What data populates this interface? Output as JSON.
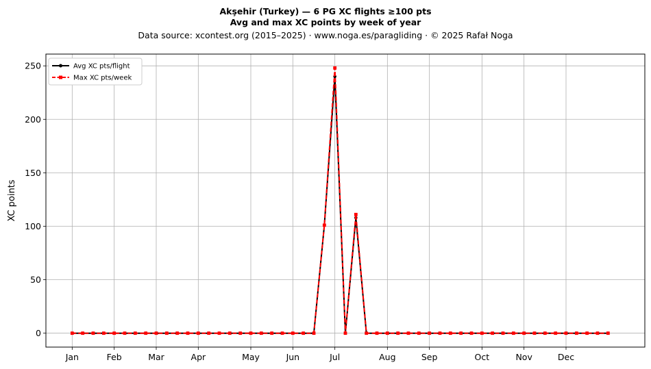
{
  "chart_data": {
    "type": "line",
    "title": "Akşehir (Turkey)  —  6 PG XC flights ≥100 pts",
    "subtitle": "Avg and max XC points by week of year",
    "source": "Data source: xcontest.org (2015–2025)  ·  www.noga.es/paragliding  ·  © 2025 Rafał Noga",
    "xlabel": "",
    "ylabel": "XC points",
    "xlim": [
      -2.5,
      54.5
    ],
    "ylim": [
      -13,
      261
    ],
    "yticks": [
      0,
      50,
      100,
      150,
      200,
      250
    ],
    "x_ticks": [
      {
        "label": "Jan",
        "week": 0
      },
      {
        "label": "Feb",
        "week": 4
      },
      {
        "label": "Mar",
        "week": 8
      },
      {
        "label": "Apr",
        "week": 12
      },
      {
        "label": "May",
        "week": 17
      },
      {
        "label": "Jun",
        "week": 21
      },
      {
        "label": "Jul",
        "week": 25
      },
      {
        "label": "Aug",
        "week": 30
      },
      {
        "label": "Sep",
        "week": 34
      },
      {
        "label": "Oct",
        "week": 39
      },
      {
        "label": "Nov",
        "week": 43
      },
      {
        "label": "Dec",
        "week": 47
      }
    ],
    "grid": true,
    "legend_position": "top-left",
    "x": [
      0,
      1,
      2,
      3,
      4,
      5,
      6,
      7,
      8,
      9,
      10,
      11,
      12,
      13,
      14,
      15,
      16,
      17,
      18,
      19,
      20,
      21,
      22,
      23,
      24,
      25,
      26,
      27,
      28,
      29,
      30,
      31,
      32,
      33,
      34,
      35,
      36,
      37,
      38,
      39,
      40,
      41,
      42,
      43,
      44,
      45,
      46,
      47,
      48,
      49,
      50,
      51
    ],
    "series": [
      {
        "name": "Avg XC pts/flight",
        "color": "#000000",
        "style": "solid",
        "marker": "circle",
        "values": [
          0,
          0,
          0,
          0,
          0,
          0,
          0,
          0,
          0,
          0,
          0,
          0,
          0,
          0,
          0,
          0,
          0,
          0,
          0,
          0,
          0,
          0,
          0,
          0,
          101,
          240,
          0,
          108,
          0,
          0,
          0,
          0,
          0,
          0,
          0,
          0,
          0,
          0,
          0,
          0,
          0,
          0,
          0,
          0,
          0,
          0,
          0,
          0,
          0,
          0,
          0,
          0
        ]
      },
      {
        "name": "Max XC pts/week",
        "color": "#ff0000",
        "style": "dashed",
        "marker": "square",
        "values": [
          0,
          0,
          0,
          0,
          0,
          0,
          0,
          0,
          0,
          0,
          0,
          0,
          0,
          0,
          0,
          0,
          0,
          0,
          0,
          0,
          0,
          0,
          0,
          0,
          101,
          248,
          0,
          111,
          0,
          0,
          0,
          0,
          0,
          0,
          0,
          0,
          0,
          0,
          0,
          0,
          0,
          0,
          0,
          0,
          0,
          0,
          0,
          0,
          0,
          0,
          0,
          0
        ]
      }
    ]
  }
}
